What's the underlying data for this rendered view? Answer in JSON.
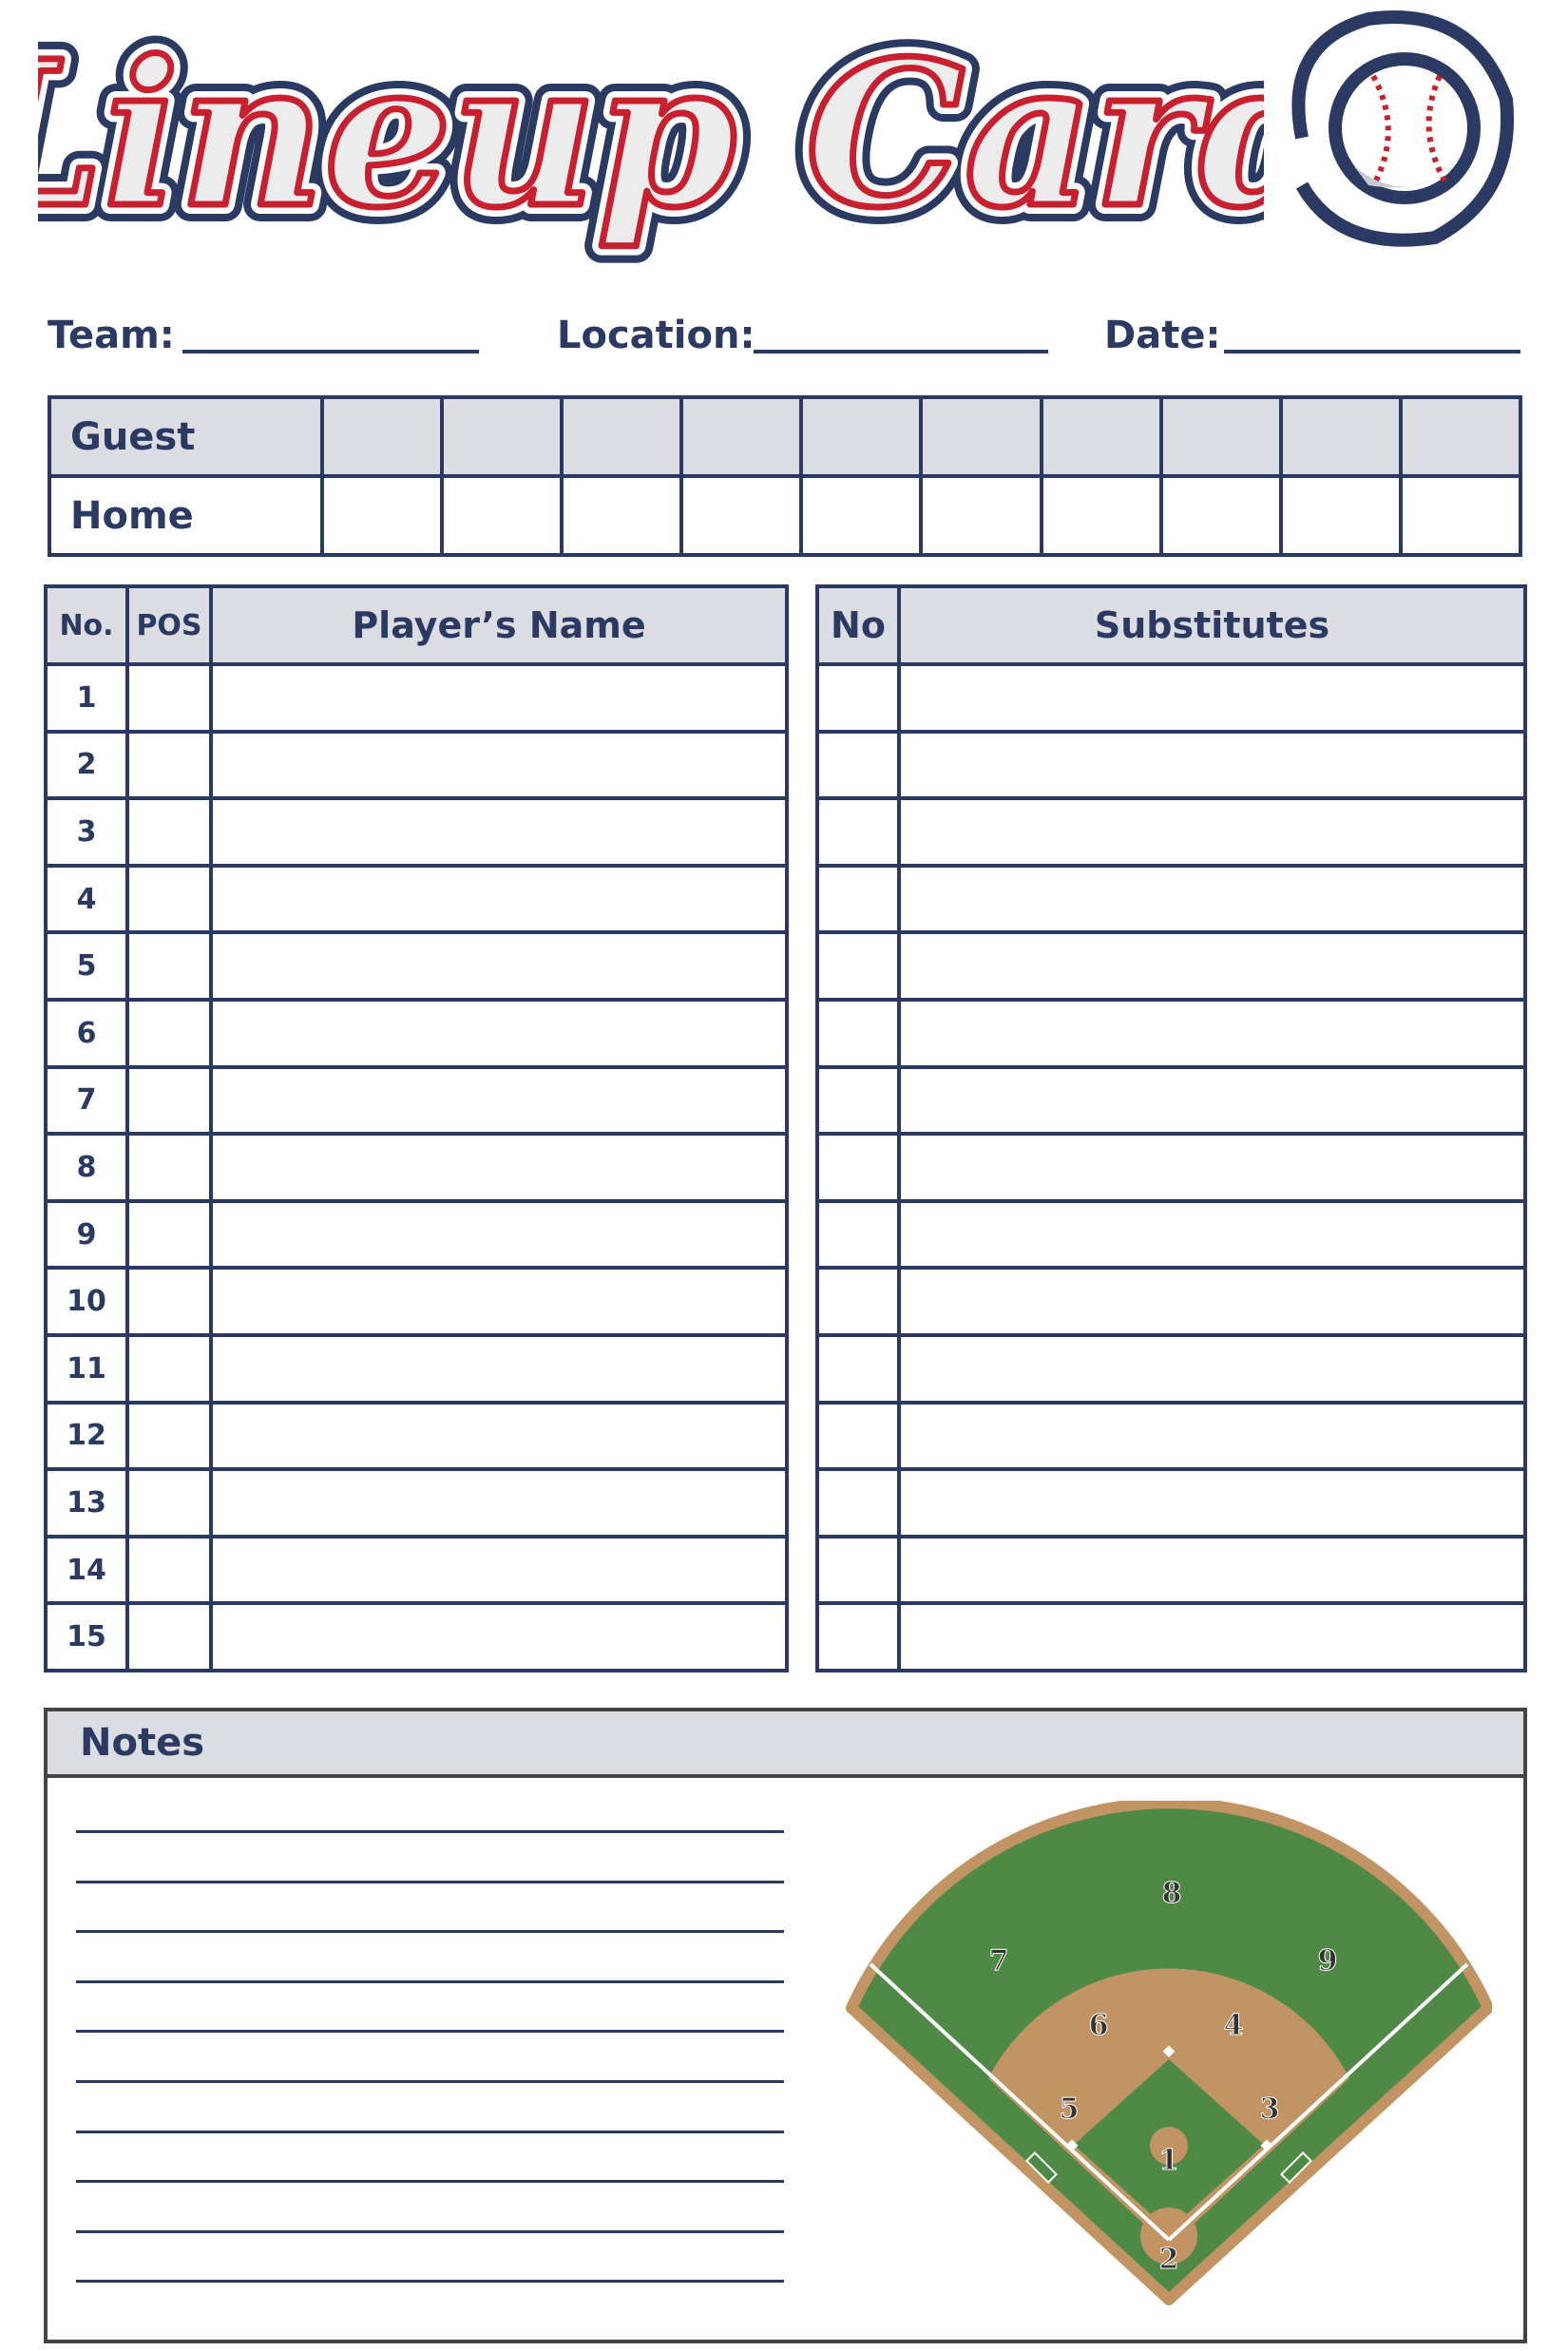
{
  "title": "Lineup Card",
  "logo_icon": "baseball-glove-icon",
  "fields": {
    "team_label": "Team:",
    "location_label": "Location:",
    "date_label": "Date:"
  },
  "scoreboard": {
    "rows": [
      "Guest",
      "Home"
    ],
    "innings": 10
  },
  "lineup": {
    "headers": {
      "no": "No.",
      "pos": "POS",
      "name": "Player’s Name"
    },
    "rows": [
      "1",
      "2",
      "3",
      "4",
      "5",
      "6",
      "7",
      "8",
      "9",
      "10",
      "11",
      "12",
      "13",
      "14",
      "15"
    ]
  },
  "substitutes": {
    "headers": {
      "no": "No",
      "name": "Substitutes"
    },
    "rows": 15
  },
  "notes": {
    "title": "Notes",
    "lines": 10
  },
  "field": {
    "positions": [
      "1",
      "2",
      "3",
      "4",
      "5",
      "6",
      "7",
      "8",
      "9"
    ]
  },
  "colors": {
    "navy": "#2b3a63",
    "red": "#c8202f",
    "header_fill": "#dcdde3",
    "grass": "#4e8a45",
    "dirt": "#c29464"
  }
}
